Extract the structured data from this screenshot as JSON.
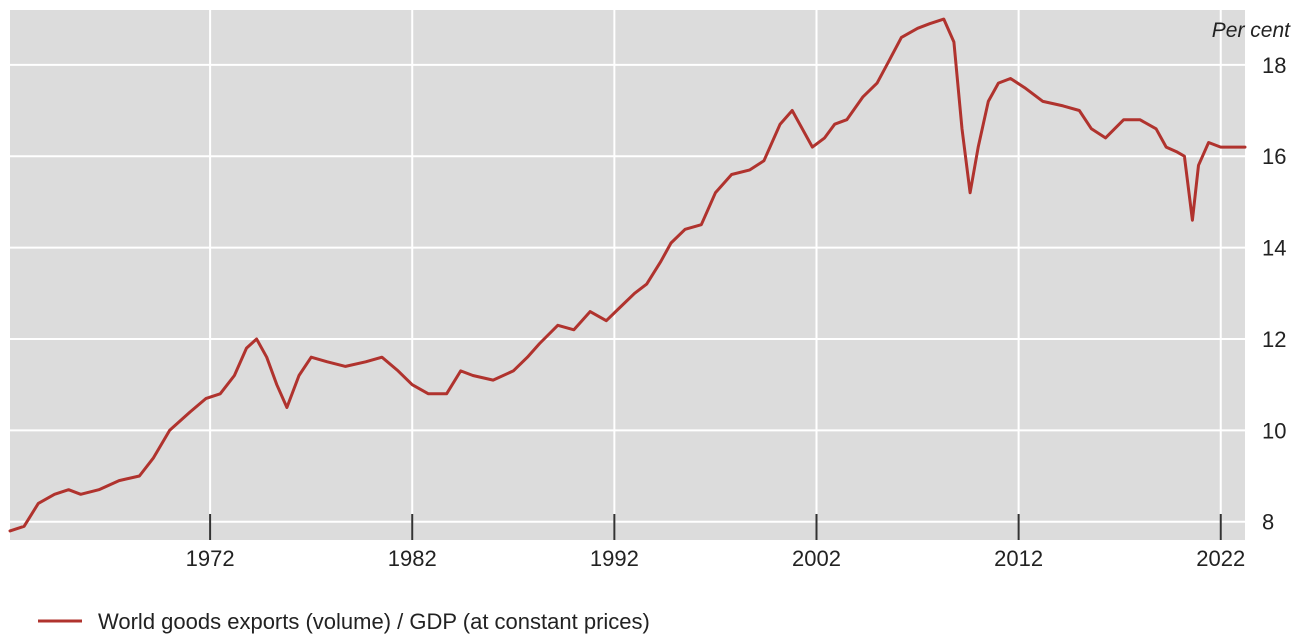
{
  "chart_data": {
    "type": "line",
    "unit_label": "Per cent",
    "xlim": [
      1962.1,
      2023.2
    ],
    "ylim": [
      7.6,
      19.2
    ],
    "y_ticks": [
      8,
      10,
      12,
      14,
      16,
      18
    ],
    "y_tick_labels": [
      "8",
      "10",
      "12",
      "14",
      "16",
      "18"
    ],
    "x_ticks": [
      1972,
      1982,
      1992,
      2002,
      2012,
      2022
    ],
    "x_tick_labels": [
      "1972",
      "1982",
      "1992",
      "2002",
      "2012",
      "2022"
    ],
    "grid": true,
    "background_color": "#dcdcdc",
    "grid_color": "#ffffff",
    "legend_position": "bottom-left",
    "series": [
      {
        "name": "World goods exports (volume) / GDP (at constant prices)",
        "color": "#b0332e",
        "x": [
          1962.1,
          1962.8,
          1963.5,
          1964.3,
          1965.0,
          1965.6,
          1966.5,
          1967.5,
          1968.5,
          1969.2,
          1970.0,
          1971.0,
          1971.8,
          1972.5,
          1973.2,
          1973.8,
          1974.3,
          1974.8,
          1975.3,
          1975.8,
          1976.4,
          1977.0,
          1977.8,
          1978.7,
          1979.7,
          1980.5,
          1981.3,
          1982.0,
          1982.8,
          1983.7,
          1984.4,
          1985.0,
          1986.0,
          1987.0,
          1987.7,
          1988.3,
          1989.2,
          1990.0,
          1990.8,
          1991.6,
          1992.3,
          1993.0,
          1993.6,
          1994.3,
          1994.8,
          1995.5,
          1996.3,
          1997.0,
          1997.8,
          1998.7,
          1999.4,
          2000.2,
          2000.8,
          2001.3,
          2001.8,
          2002.4,
          2002.9,
          2003.5,
          2004.3,
          2005.0,
          2005.6,
          2006.2,
          2007.0,
          2007.6,
          2008.3,
          2008.8,
          2009.2,
          2009.6,
          2010.0,
          2010.5,
          2011.0,
          2011.6,
          2012.3,
          2013.2,
          2014.2,
          2015.0,
          2015.6,
          2016.3,
          2017.2,
          2018.0,
          2018.8,
          2019.3,
          2019.8,
          2020.2,
          2020.6,
          2020.9,
          2021.4,
          2022.0,
          2022.6,
          2023.2
        ],
        "values": [
          7.8,
          7.9,
          8.4,
          8.6,
          8.7,
          8.6,
          8.7,
          8.9,
          9.0,
          9.4,
          10.0,
          10.4,
          10.7,
          10.8,
          11.2,
          11.8,
          12.0,
          11.6,
          11.0,
          10.5,
          11.2,
          11.6,
          11.5,
          11.4,
          11.5,
          11.6,
          11.3,
          11.0,
          10.8,
          10.8,
          11.3,
          11.2,
          11.1,
          11.3,
          11.6,
          11.9,
          12.3,
          12.2,
          12.6,
          12.4,
          12.7,
          13.0,
          13.2,
          13.7,
          14.1,
          14.4,
          14.5,
          15.2,
          15.6,
          15.7,
          15.9,
          16.7,
          17.0,
          16.6,
          16.2,
          16.4,
          16.7,
          16.8,
          17.3,
          17.6,
          18.1,
          18.6,
          18.8,
          18.9,
          19.0,
          18.5,
          16.6,
          15.2,
          16.2,
          17.2,
          17.6,
          17.7,
          17.5,
          17.2,
          17.1,
          17.0,
          16.6,
          16.4,
          16.8,
          16.8,
          16.6,
          16.2,
          16.1,
          16.0,
          14.6,
          15.8,
          16.3,
          16.2,
          16.2,
          16.2
        ]
      }
    ]
  }
}
